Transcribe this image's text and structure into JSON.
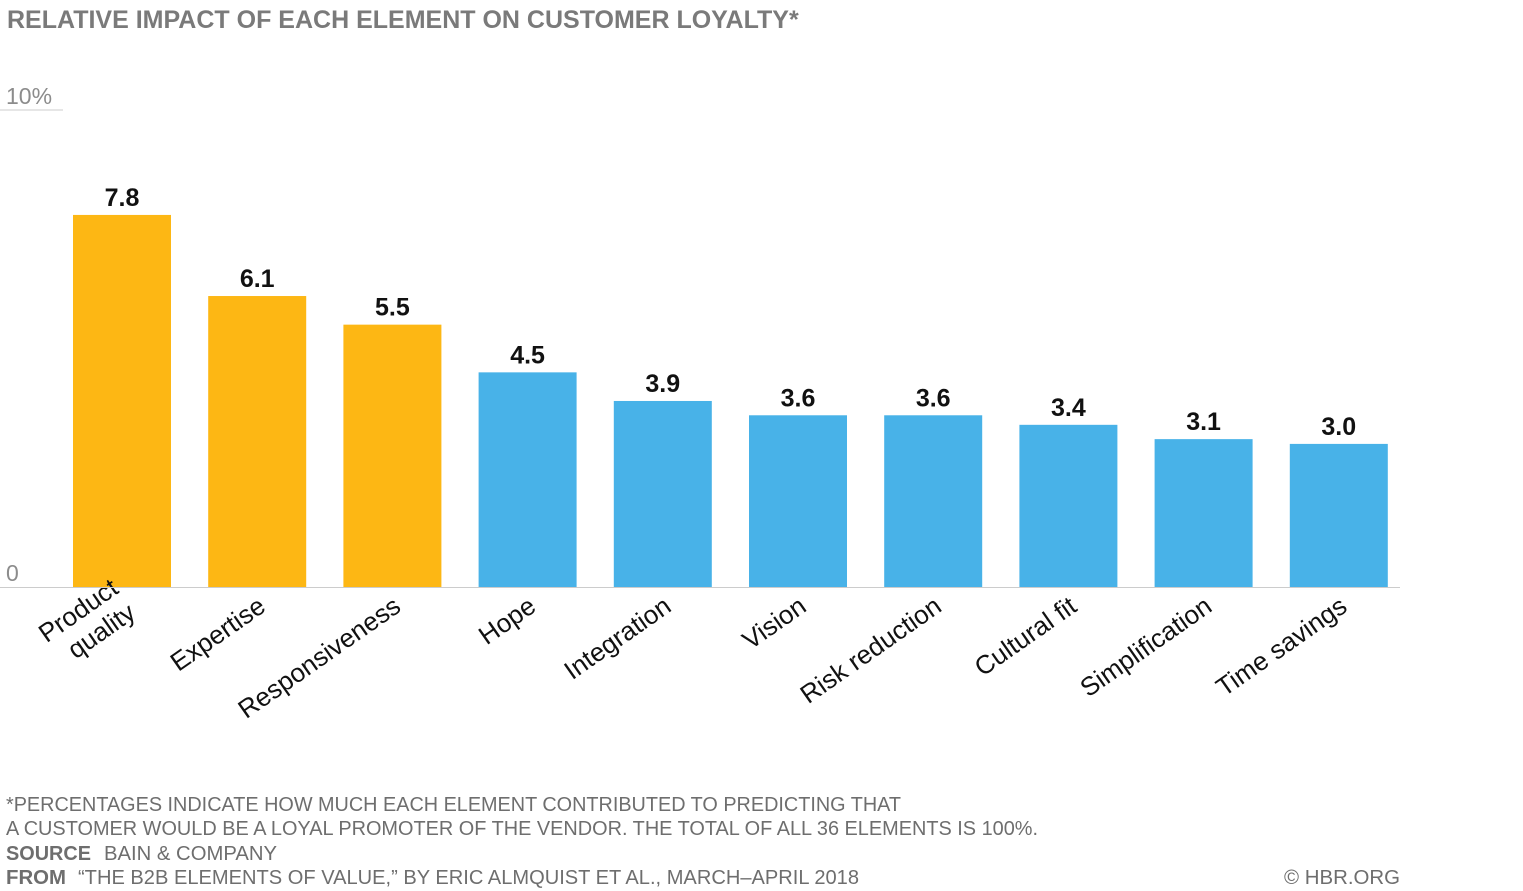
{
  "chart_data": {
    "type": "bar",
    "title": "RELATIVE IMPACT OF EACH ELEMENT ON CUSTOMER LOYALTY*",
    "categories": [
      "Product quality",
      "Expertise",
      "Responsiveness",
      "Hope",
      "Integration",
      "Vision",
      "Risk reduction",
      "Cultural fit",
      "Simplification",
      "Time savings"
    ],
    "category_lines": [
      [
        "Product",
        "quality"
      ],
      [
        "Expertise"
      ],
      [
        "Responsiveness"
      ],
      [
        "Hope"
      ],
      [
        "Integration"
      ],
      [
        "Vision"
      ],
      [
        "Risk reduction"
      ],
      [
        "Cultural fit"
      ],
      [
        "Simplification"
      ],
      [
        "Time savings"
      ]
    ],
    "values": [
      7.8,
      6.1,
      5.5,
      4.5,
      3.9,
      3.6,
      3.6,
      3.4,
      3.1,
      3.0
    ],
    "value_labels": [
      "7.8",
      "6.1",
      "5.5",
      "4.5",
      "3.9",
      "3.6",
      "3.6",
      "3.4",
      "3.1",
      "3.0"
    ],
    "highlight_count": 3,
    "colors": {
      "highlight": "#FDB714",
      "default": "#48B2E8"
    },
    "ylim": [
      0,
      10
    ],
    "yticks": [
      "0",
      "10%"
    ],
    "xlabel": "",
    "ylabel": "",
    "grid": false
  },
  "footer": {
    "note_line1": "*PERCENTAGES INDICATE HOW MUCH EACH ELEMENT CONTRIBUTED TO PREDICTING THAT",
    "note_line2": "A CUSTOMER WOULD BE A LOYAL PROMOTER OF THE VENDOR. THE TOTAL OF ALL 36 ELEMENTS IS 100%.",
    "source_label": "SOURCE",
    "source": "BAIN & COMPANY",
    "from_label": "FROM",
    "from": "“THE B2B ELEMENTS OF VALUE,” BY ERIC ALMQUIST ET AL., MARCH–APRIL 2018",
    "credit": "© HBR.ORG"
  }
}
